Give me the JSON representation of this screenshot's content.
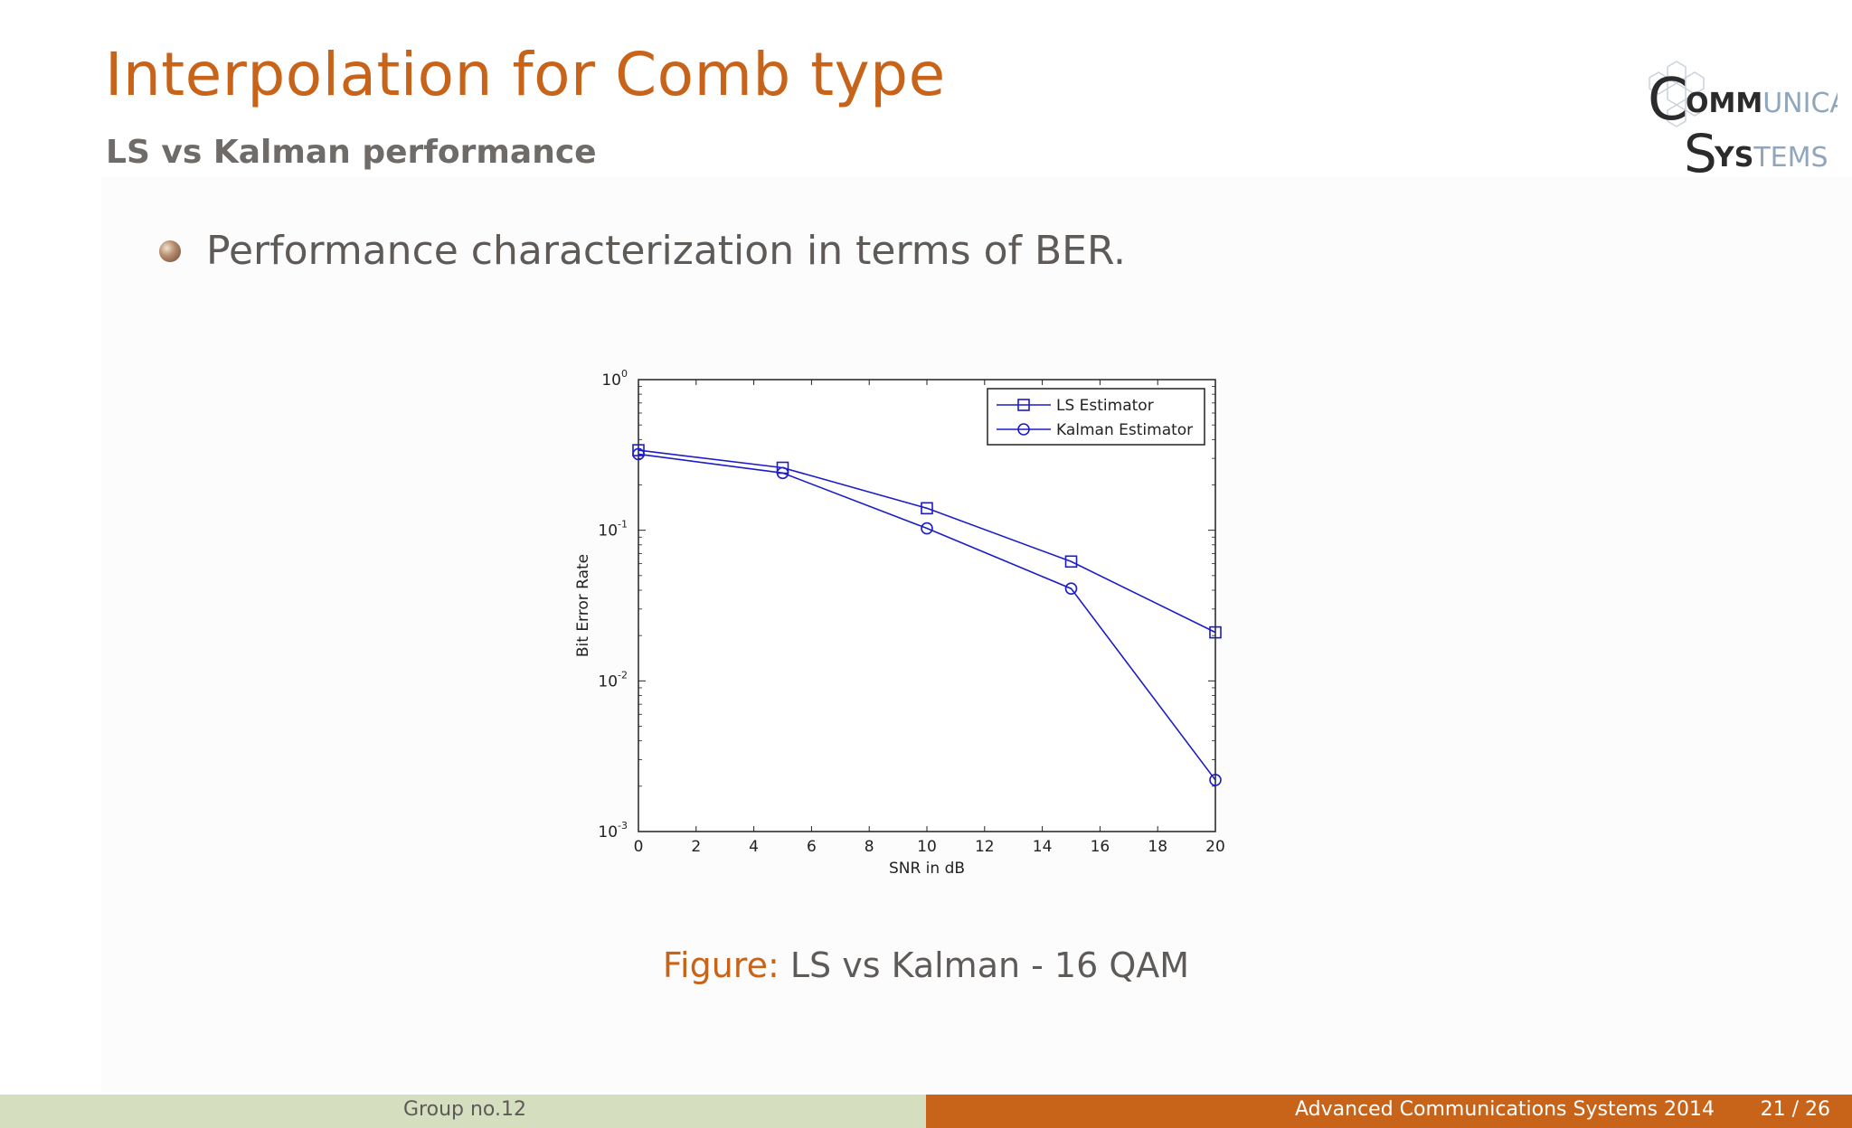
{
  "slide": {
    "title": "Interpolation for Comb type",
    "subtitle": "LS vs Kalman performance",
    "bullet": "Performance characterization in terms of BER.",
    "caption_label": "Figure:",
    "caption_text": "LS vs Kalman - 16 QAM"
  },
  "logo": {
    "line1_bold": "OMM",
    "line1_rest": "UNICATION",
    "line2_bold": "YS",
    "line2_rest": "TEMS",
    "colors": {
      "dark": "#2b2b2b",
      "accent": "#8fa6bd"
    }
  },
  "footer": {
    "group": "Group no.12",
    "conference": "Advanced Communications Systems 2014",
    "page": "21 / 26"
  },
  "colors": {
    "accent": "#c8631a",
    "footer_left_bg": "#d5dfbf",
    "text_gray": "#5d5a58",
    "series": "#1c1cc8"
  },
  "chart_data": {
    "type": "line",
    "xlabel": "SNR in dB",
    "ylabel": "Bit Error Rate",
    "xlim": [
      0,
      20
    ],
    "ylim": [
      0.001,
      1
    ],
    "yscale": "log",
    "xticks": [
      0,
      2,
      4,
      6,
      8,
      10,
      12,
      14,
      16,
      18,
      20
    ],
    "yticks": [
      {
        "base": "10",
        "exp": "0",
        "value": 1
      },
      {
        "base": "10",
        "exp": "-1",
        "value": 0.1
      },
      {
        "base": "10",
        "exp": "-2",
        "value": 0.01
      },
      {
        "base": "10",
        "exp": "-3",
        "value": 0.001
      }
    ],
    "legend_position": "top-right",
    "series": [
      {
        "name": "LS Estimator",
        "marker": "square",
        "x": [
          0,
          5,
          10,
          15,
          20
        ],
        "y": [
          0.34,
          0.26,
          0.14,
          0.062,
          0.021
        ]
      },
      {
        "name": "Kalman Estimator",
        "marker": "circle",
        "x": [
          0,
          5,
          10,
          15,
          20
        ],
        "y": [
          0.32,
          0.24,
          0.103,
          0.041,
          0.0022
        ]
      }
    ]
  }
}
